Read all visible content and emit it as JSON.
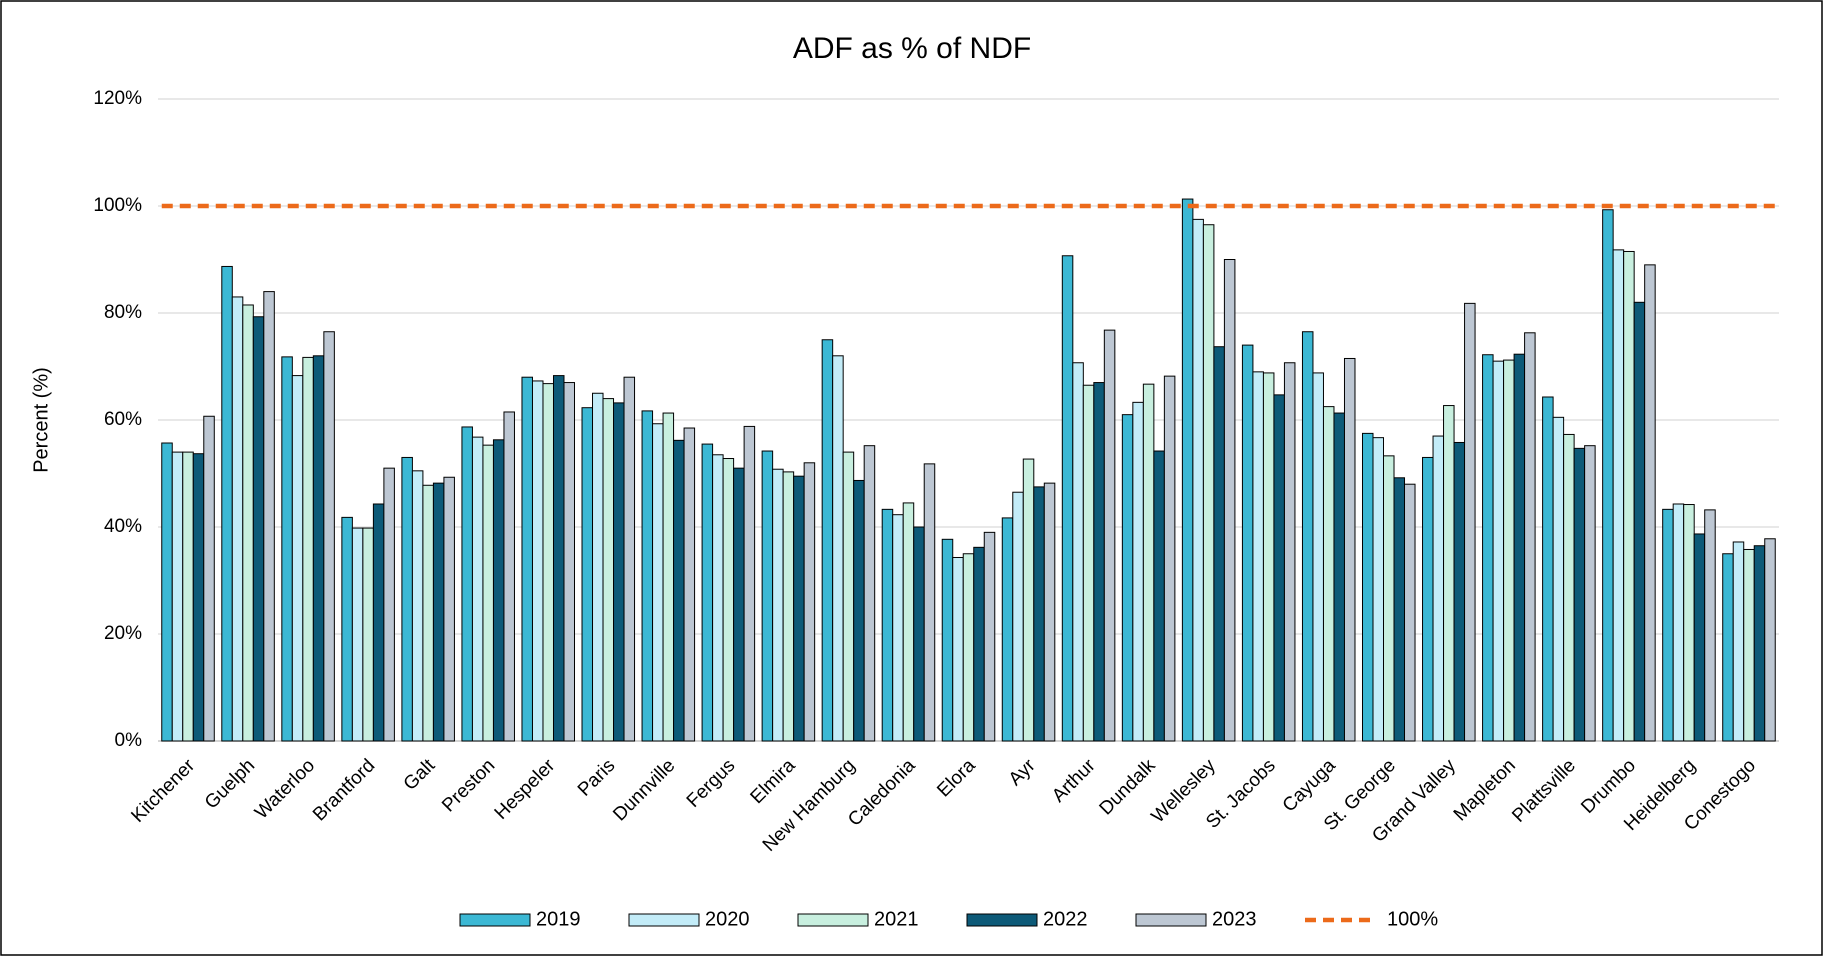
{
  "chart_data": {
    "type": "bar",
    "title": "ADF as % of NDF",
    "y_label": "Percent (%)",
    "categories": [
      "Kitchener",
      "Guelph",
      "Waterloo",
      "Brantford",
      "Galt",
      "Preston",
      "Hespeler",
      "Paris",
      "Dunnville",
      "Fergus",
      "Elmira",
      "New Hamburg",
      "Caledonia",
      "Elora",
      "Ayr",
      "Arthur",
      "Dundalk",
      "Wellesley",
      "St. Jacobs",
      "Cayuga",
      "St. George",
      "Grand Valley",
      "Mapleton",
      "Plattsville",
      "Drumbo",
      "Heidelberg",
      "Conestogo"
    ],
    "series": [
      {
        "name": "2019",
        "color": "#3cb8d4",
        "values": [
          55.7,
          88.7,
          71.8,
          41.8,
          53,
          58.7,
          68,
          62.3,
          61.7,
          55.5,
          54.2,
          75,
          43.3,
          37.7,
          41.7,
          90.7,
          61,
          101.3,
          74,
          76.5,
          57.5,
          53,
          72.2,
          64.3,
          99.3,
          43.3,
          35
        ]
      },
      {
        "name": "2020",
        "color": "#c3ecf8",
        "values": [
          54,
          83,
          68.3,
          39.8,
          50.5,
          56.8,
          67.3,
          65,
          59.3,
          53.5,
          50.8,
          72,
          42.3,
          34.3,
          46.5,
          70.7,
          63.3,
          97.5,
          69,
          68.8,
          56.7,
          57,
          71,
          60.5,
          91.8,
          44.3,
          37.2
        ]
      },
      {
        "name": "2021",
        "color": "#c8efdf",
        "values": [
          54,
          81.5,
          71.7,
          39.8,
          47.8,
          55.3,
          66.8,
          64,
          61.3,
          52.8,
          50.3,
          54,
          44.5,
          35,
          52.7,
          66.5,
          66.7,
          96.5,
          68.8,
          62.5,
          53.3,
          62.7,
          71.2,
          57.3,
          91.5,
          44.2,
          35.8
        ]
      },
      {
        "name": "2022",
        "color": "#0d5a78",
        "values": [
          53.7,
          79.3,
          72,
          44.3,
          48.2,
          56.3,
          68.3,
          63.2,
          56.2,
          51,
          49.5,
          48.7,
          40,
          36.2,
          47.5,
          67,
          54.2,
          73.7,
          64.7,
          61.3,
          49.2,
          55.8,
          72.3,
          54.7,
          82,
          38.7,
          36.5
        ]
      },
      {
        "name": "2023",
        "color": "#bdc7d3",
        "values": [
          60.7,
          84,
          76.5,
          51,
          49.3,
          61.5,
          67,
          68,
          58.5,
          58.8,
          52,
          55.2,
          51.8,
          39,
          48.2,
          76.8,
          68.2,
          90,
          70.7,
          71.5,
          48,
          81.8,
          76.3,
          55.2,
          89,
          43.2,
          37.8
        ]
      }
    ],
    "reference_line": {
      "name": "100%",
      "value": 100,
      "color": "#ec6a1a",
      "dashed": true
    },
    "ylim": [
      0,
      120
    ],
    "yticks": [
      {
        "value": 0,
        "label": "0%"
      },
      {
        "value": 20,
        "label": "20%"
      },
      {
        "value": 40,
        "label": "40%"
      },
      {
        "value": 60,
        "label": "60%"
      },
      {
        "value": 80,
        "label": "80%"
      },
      {
        "value": 100,
        "label": "100%"
      },
      {
        "value": 120,
        "label": "120%"
      }
    ],
    "grid": true,
    "legend": "bottom"
  }
}
